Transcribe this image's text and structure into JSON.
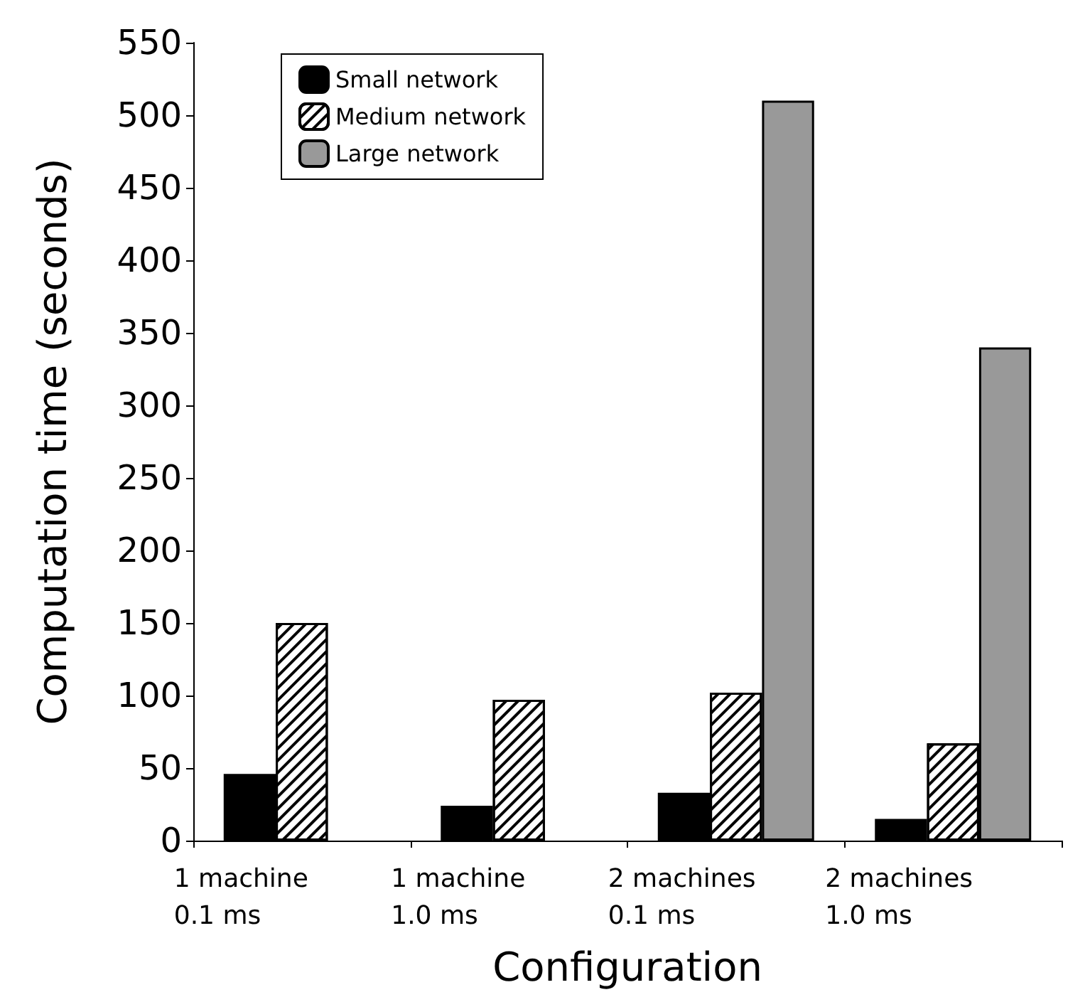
{
  "chart_data": {
    "type": "bar",
    "xlabel": "Configuration",
    "ylabel": "Computation time (seconds)",
    "categories": [
      "1 machine\n0.1 ms",
      "1 machine\n1.0 ms",
      "2 machines\n0.1 ms",
      "2 machines\n1.0 ms"
    ],
    "series": [
      {
        "name": "Small network",
        "color": "#000000",
        "values": [
          46,
          24,
          33,
          15
        ]
      },
      {
        "name": "Medium network",
        "color": "#ffffff",
        "values": [
          150,
          97,
          102,
          67
        ]
      },
      {
        "name": "Large network",
        "color": "#999999",
        "values": [
          null,
          null,
          510,
          340
        ]
      }
    ],
    "ylim": [
      0,
      550
    ],
    "yticks": [
      0,
      50,
      100,
      150,
      200,
      250,
      300,
      350,
      400,
      450,
      500,
      550
    ],
    "grid": false,
    "legend": "top left"
  }
}
